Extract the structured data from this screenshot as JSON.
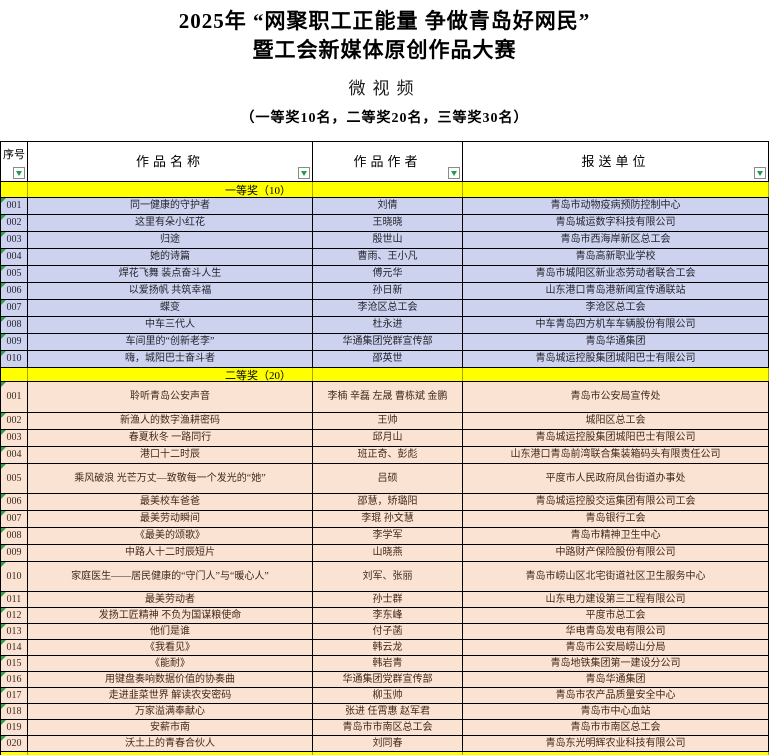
{
  "title": {
    "line1": "2025年 “网聚职工正能量 争做青岛好网民”",
    "line2": "暨工会新媒体原创作品大赛",
    "category": "微视频",
    "subtitle": "（一等奖10名，二等奖20名，三等奖30名）"
  },
  "table": {
    "columns": [
      "序号",
      "作品名称",
      "作品作者",
      "报送单位"
    ],
    "sections": [
      {
        "banner": "一等奖（10）",
        "row_bg": "#cdd2ef",
        "rows": [
          [
            "001",
            "同一健康的守护者",
            "刘倩",
            "青岛市动物疫病预防控制中心"
          ],
          [
            "002",
            "这里有朵小红花",
            "王晓晓",
            "青岛城运数字科技有限公司"
          ],
          [
            "003",
            "归途",
            "殷世山",
            "青岛市西海岸新区总工会"
          ],
          [
            "004",
            "她的诗篇",
            "曹雨、王小凡",
            "青岛高新职业学校"
          ],
          [
            "005",
            "焊花飞舞 装点奋斗人生",
            "傅元华",
            "青岛市城阳区新业态劳动者联合工会"
          ],
          [
            "006",
            "以爱扬帆 共筑幸福",
            "孙日新",
            "山东港口青岛港新闻宣传通联站"
          ],
          [
            "007",
            "蝶变",
            "李沧区总工会",
            "李沧区总工会"
          ],
          [
            "008",
            "中车三代人",
            "杜永进",
            "中车青岛四方机车车辆股份有限公司"
          ],
          [
            "009",
            "车间里的“创新老李”",
            "华通集团党群宣传部",
            "青岛华通集团"
          ],
          [
            "010",
            "嗨，城阳巴士奋斗者",
            "邵英世",
            "青岛城运控股集团城阳巴士有限公司"
          ]
        ]
      },
      {
        "banner": "二等奖（20）",
        "row_bg": "#fbe3d4",
        "rows": [
          [
            "001",
            "聆听青岛公安声音",
            "李楠 辛磊 左晟 曹栋斌 金鹏",
            "青岛市公安局宣传处"
          ],
          [
            "002",
            "新渔人的数字渔耕密码",
            "王帅",
            "城阳区总工会"
          ],
          [
            "003",
            "春夏秋冬 一路同行",
            "邱月山",
            "青岛城运控股集团城阳巴士有限公司"
          ],
          [
            "004",
            "港口十二时辰",
            "班正奇、彭彪",
            "山东港口青岛前湾联合集装箱码头有限责任公司"
          ],
          [
            "005",
            "乘风破浪 光芒万丈—致敬每一个发光的“她”",
            "吕硕",
            "平度市人民政府凤台街道办事处"
          ],
          [
            "006",
            "最美校车爸爸",
            "邵慧，矫璐阳",
            "青岛城运控股交运集团有限公司工会"
          ],
          [
            "007",
            "最美劳动瞬间",
            "李琨 孙文慧",
            "青岛银行工会"
          ],
          [
            "008",
            "《最美的颂歌》",
            "李学军",
            "青岛市精神卫生中心"
          ],
          [
            "009",
            "中路人十二时辰短片",
            "山晓燕",
            "中路财产保险股份有限公司"
          ],
          [
            "010",
            "家庭医生——居民健康的“守门人”与“暖心人”",
            "刘军、张丽",
            "青岛市崂山区北宅街道社区卫生服务中心"
          ],
          [
            "011",
            "最美劳动者",
            "孙士群",
            "山东电力建设第三工程有限公司"
          ],
          [
            "012",
            "发扬工匠精神 不负为国谋粮使命",
            "李东峰",
            "平度市总工会"
          ],
          [
            "013",
            "他们是谁",
            "付子菡",
            "华电青岛发电有限公司"
          ],
          [
            "014",
            "《我看见》",
            "韩云龙",
            "青岛市公安局崂山分局"
          ],
          [
            "015",
            "《能耐》",
            "韩岩青",
            "青岛地铁集团第一建设分公司"
          ],
          [
            "016",
            "用键盘奏响数据价值的协奏曲",
            "华通集团党群宣传部",
            "青岛华通集团"
          ],
          [
            "017",
            "走进韭菜世界 解读农安密码",
            "柳玉帅",
            "青岛市农产品质量安全中心"
          ],
          [
            "018",
            "万家溢满奉献心",
            "张进 任霄惠 赵军君",
            "青岛市中心血站"
          ],
          [
            "019",
            "安薪市南",
            "青岛市市南区总工会",
            "青岛市市南区总工会"
          ],
          [
            "020",
            "沃土上的青春合伙人",
            "刘同春",
            "青岛东光明辉农业科技有限公司"
          ]
        ]
      }
    ]
  },
  "colors": {
    "banner_yellow": "#ffff00",
    "filter_green": "#1f9d4e",
    "corner_triangle_green": "#2e9e4f",
    "grid_border": "#000000"
  }
}
